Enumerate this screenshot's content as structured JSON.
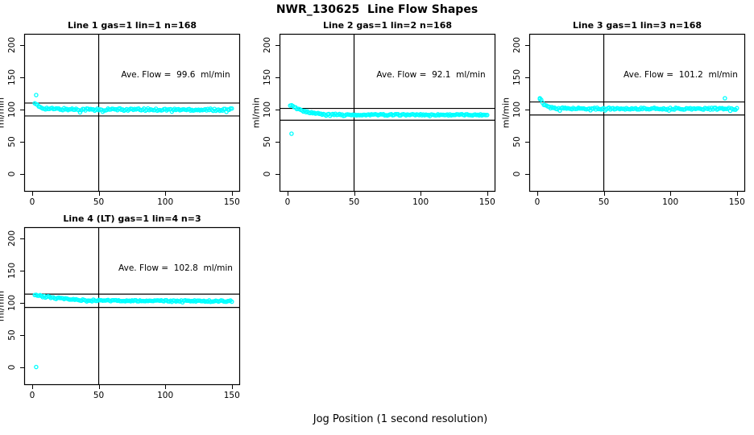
{
  "page": {
    "title": "NWR_130625  Line Flow Shapes",
    "xlabel": "Jog Position (1 second resolution)",
    "background": "#ffffff",
    "point_color": "#00ffff",
    "axis_color": "#000000"
  },
  "chart_data": [
    {
      "type": "scatter",
      "title": "Line 1 gas=1 lin=1 n=168",
      "annotation": "Ave. Flow =  99.6  ml/min",
      "avg_flow_ml_min": 99.6,
      "n": 168,
      "ylabel": "ml/min",
      "xticks": [
        0,
        50,
        100,
        150
      ],
      "yticks": [
        0,
        50,
        100,
        150,
        200
      ],
      "xlim": [
        -6,
        156.2
      ],
      "ylim": [
        -28,
        217
      ],
      "grid": false,
      "vline_x": 50,
      "hlines": [
        109.6,
        89.6
      ],
      "x_range": [
        2,
        150
      ],
      "envelope": [
        [
          2,
          108
        ],
        [
          3,
          107
        ],
        [
          5,
          104
        ],
        [
          8,
          102
        ],
        [
          14,
          100.5
        ],
        [
          25,
          100
        ],
        [
          60,
          99.5
        ],
        [
          150,
          99.3
        ]
      ],
      "jitter": 1.8,
      "outliers": [
        [
          3,
          122
        ]
      ]
    },
    {
      "type": "scatter",
      "title": "Line 2 gas=1 lin=2 n=168",
      "annotation": "Ave. Flow =  92.1  ml/min",
      "avg_flow_ml_min": 92.1,
      "n": 168,
      "ylabel": "ml/min",
      "xticks": [
        0,
        50,
        100,
        150
      ],
      "yticks": [
        0,
        50,
        100,
        150,
        200
      ],
      "xlim": [
        -6,
        156.2
      ],
      "ylim": [
        -28,
        217
      ],
      "grid": false,
      "vline_x": 50,
      "hlines": [
        101.3,
        82.9
      ],
      "x_range": [
        2,
        150
      ],
      "envelope": [
        [
          2,
          105
        ],
        [
          3,
          106
        ],
        [
          5,
          103
        ],
        [
          8,
          100
        ],
        [
          12,
          97
        ],
        [
          18,
          94.5
        ],
        [
          28,
          92.5
        ],
        [
          45,
          91.5
        ],
        [
          150,
          91.3
        ]
      ],
      "jitter": 1.0,
      "outliers": [
        [
          3,
          62
        ]
      ]
    },
    {
      "type": "scatter",
      "title": "Line 3 gas=1 lin=3 n=168",
      "annotation": "Ave. Flow =  101.2  ml/min",
      "avg_flow_ml_min": 101.2,
      "n": 168,
      "ylabel": "ml/min",
      "xticks": [
        0,
        50,
        100,
        150
      ],
      "yticks": [
        0,
        50,
        100,
        150,
        200
      ],
      "xlim": [
        -6,
        156.2
      ],
      "ylim": [
        -28,
        217
      ],
      "grid": false,
      "vline_x": 50,
      "hlines": [
        111.3,
        91.1
      ],
      "x_range": [
        2,
        150
      ],
      "envelope": [
        [
          2,
          115
        ],
        [
          3,
          114
        ],
        [
          4,
          110
        ],
        [
          6,
          106
        ],
        [
          9,
          103
        ],
        [
          14,
          101.5
        ],
        [
          30,
          101
        ],
        [
          150,
          100.7
        ]
      ],
      "jitter": 1.4,
      "outliers": [
        [
          2,
          117
        ],
        [
          141,
          117
        ]
      ]
    },
    {
      "type": "scatter",
      "title": "Line 4 (LT) gas=1 lin=4 n=3",
      "annotation": "Ave. Flow =  102.8  ml/min",
      "avg_flow_ml_min": 102.8,
      "n": 3,
      "ylabel": "ml/min",
      "xticks": [
        0,
        50,
        100,
        150
      ],
      "yticks": [
        0,
        50,
        100,
        150,
        200
      ],
      "xlim": [
        -6,
        156.2
      ],
      "ylim": [
        -28,
        217
      ],
      "grid": false,
      "vline_x": 50,
      "hlines": [
        113.1,
        92.5
      ],
      "x_range": [
        2,
        150
      ],
      "envelope": [
        [
          2,
          111
        ],
        [
          3,
          112
        ],
        [
          5,
          111.5
        ],
        [
          10,
          109.5
        ],
        [
          16,
          107.5
        ],
        [
          25,
          105.5
        ],
        [
          35,
          104
        ],
        [
          50,
          103.2
        ],
        [
          80,
          102.8
        ],
        [
          150,
          102.3
        ]
      ],
      "jitter": 1.1,
      "outliers": [
        [
          3,
          0
        ]
      ]
    }
  ]
}
